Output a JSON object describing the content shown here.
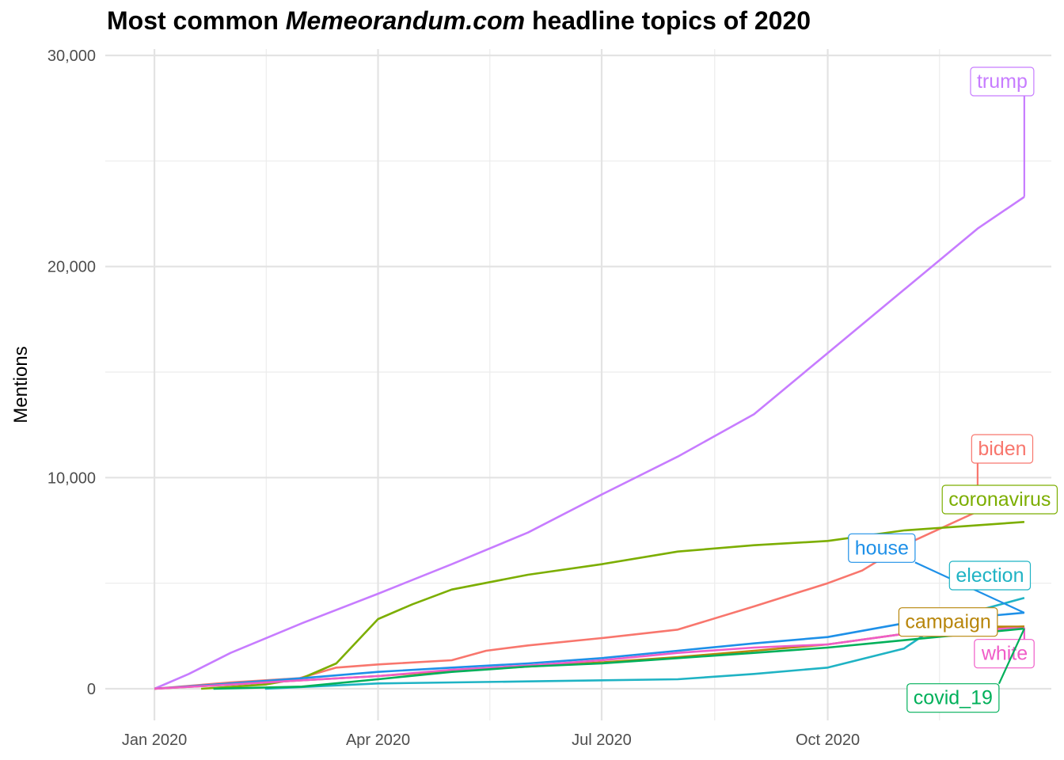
{
  "chart_data": {
    "type": "line",
    "title_parts": {
      "before": "Most common ",
      "italic": "Memeorandum.com",
      "after": " headline topics of 2020"
    },
    "xlabel": "",
    "ylabel": "Mentions",
    "x_ticks": [
      "Jan 2020",
      "Apr 2020",
      "Jul 2020",
      "Oct 2020"
    ],
    "x_tick_dates": [
      "2020-01-01",
      "2020-04-01",
      "2020-07-01",
      "2020-10-01"
    ],
    "y_ticks": [
      "0",
      "10,000",
      "20,000",
      "30,000"
    ],
    "y_tick_values": [
      0,
      10000,
      20000,
      30000
    ],
    "xlim": [
      "2019-12-12",
      "2020-12-31"
    ],
    "ylim": [
      -1500,
      30300
    ],
    "grid": true,
    "series": [
      {
        "name": "trump",
        "color": "#C77CFF",
        "label_date": "2020-12-11",
        "label_y": 28800,
        "points": [
          [
            "2020-01-01",
            0
          ],
          [
            "2020-01-15",
            700
          ],
          [
            "2020-02-01",
            1700
          ],
          [
            "2020-03-01",
            3100
          ],
          [
            "2020-04-01",
            4500
          ],
          [
            "2020-05-01",
            5900
          ],
          [
            "2020-06-01",
            7400
          ],
          [
            "2020-07-01",
            9200
          ],
          [
            "2020-08-01",
            11000
          ],
          [
            "2020-09-01",
            13000
          ],
          [
            "2020-10-01",
            15900
          ],
          [
            "2020-11-01",
            18900
          ],
          [
            "2020-12-01",
            21800
          ],
          [
            "2020-12-20",
            23300
          ]
        ]
      },
      {
        "name": "biden",
        "color": "#F8766D",
        "label_date": "2020-12-11",
        "label_y": 11400,
        "points": [
          [
            "2020-01-01",
            0
          ],
          [
            "2020-02-01",
            300
          ],
          [
            "2020-02-29",
            500
          ],
          [
            "2020-03-15",
            1000
          ],
          [
            "2020-04-01",
            1150
          ],
          [
            "2020-05-01",
            1350
          ],
          [
            "2020-05-15",
            1800
          ],
          [
            "2020-06-01",
            2050
          ],
          [
            "2020-07-01",
            2400
          ],
          [
            "2020-08-01",
            2800
          ],
          [
            "2020-09-01",
            3900
          ],
          [
            "2020-10-01",
            5000
          ],
          [
            "2020-10-15",
            5600
          ],
          [
            "2020-11-01",
            6800
          ],
          [
            "2020-12-01",
            8400
          ]
        ]
      },
      {
        "name": "coronavirus",
        "color": "#7CAE00",
        "label_date": "2020-12-10",
        "label_y": 9000,
        "points": [
          [
            "2020-01-20",
            0
          ],
          [
            "2020-02-15",
            200
          ],
          [
            "2020-03-01",
            500
          ],
          [
            "2020-03-15",
            1200
          ],
          [
            "2020-04-01",
            3300
          ],
          [
            "2020-04-15",
            4000
          ],
          [
            "2020-05-01",
            4700
          ],
          [
            "2020-06-01",
            5400
          ],
          [
            "2020-07-01",
            5900
          ],
          [
            "2020-08-01",
            6500
          ],
          [
            "2020-09-01",
            6800
          ],
          [
            "2020-10-01",
            7000
          ],
          [
            "2020-11-01",
            7500
          ],
          [
            "2020-12-20",
            7900
          ]
        ]
      },
      {
        "name": "house",
        "color": "#1E90E8",
        "label_date": "2020-10-23",
        "label_y": 6700,
        "points": [
          [
            "2020-01-01",
            0
          ],
          [
            "2020-02-01",
            250
          ],
          [
            "2020-03-01",
            500
          ],
          [
            "2020-04-01",
            800
          ],
          [
            "2020-05-01",
            1000
          ],
          [
            "2020-06-01",
            1200
          ],
          [
            "2020-07-01",
            1450
          ],
          [
            "2020-08-01",
            1800
          ],
          [
            "2020-09-01",
            2150
          ],
          [
            "2020-10-01",
            2450
          ],
          [
            "2020-11-01",
            3100
          ],
          [
            "2020-12-20",
            3600
          ]
        ]
      },
      {
        "name": "election",
        "color": "#1FB3C4",
        "label_date": "2020-12-06",
        "label_y": 5400,
        "points": [
          [
            "2020-02-15",
            0
          ],
          [
            "2020-04-01",
            250
          ],
          [
            "2020-06-01",
            350
          ],
          [
            "2020-08-01",
            450
          ],
          [
            "2020-09-01",
            700
          ],
          [
            "2020-10-01",
            1000
          ],
          [
            "2020-11-01",
            1900
          ],
          [
            "2020-11-15",
            3000
          ],
          [
            "2020-12-01",
            3700
          ],
          [
            "2020-12-20",
            4300
          ]
        ]
      },
      {
        "name": "campaign",
        "color": "#B8860B",
        "label_date": "2020-11-19",
        "label_y": 3200,
        "points": [
          [
            "2020-01-01",
            0
          ],
          [
            "2020-02-01",
            200
          ],
          [
            "2020-03-01",
            400
          ],
          [
            "2020-04-01",
            600
          ],
          [
            "2020-05-01",
            850
          ],
          [
            "2020-06-01",
            1050
          ],
          [
            "2020-07-01",
            1250
          ],
          [
            "2020-08-01",
            1500
          ],
          [
            "2020-09-01",
            1800
          ],
          [
            "2020-10-01",
            2100
          ],
          [
            "2020-11-01",
            2600
          ],
          [
            "2020-12-20",
            2950
          ]
        ]
      },
      {
        "name": "white",
        "color": "#F05CC8",
        "label_date": "2020-12-12",
        "label_y": 1700,
        "points": [
          [
            "2020-01-01",
            0
          ],
          [
            "2020-02-01",
            200
          ],
          [
            "2020-03-01",
            400
          ],
          [
            "2020-04-01",
            600
          ],
          [
            "2020-05-01",
            900
          ],
          [
            "2020-06-01",
            1100
          ],
          [
            "2020-07-01",
            1350
          ],
          [
            "2020-08-01",
            1700
          ],
          [
            "2020-09-01",
            1950
          ],
          [
            "2020-10-01",
            2100
          ],
          [
            "2020-11-01",
            2600
          ],
          [
            "2020-12-20",
            2900
          ]
        ]
      },
      {
        "name": "covid_19",
        "color": "#00B05A",
        "label_date": "2020-11-21",
        "label_y": -400,
        "points": [
          [
            "2020-01-25",
            0
          ],
          [
            "2020-03-01",
            100
          ],
          [
            "2020-04-01",
            450
          ],
          [
            "2020-05-01",
            800
          ],
          [
            "2020-06-01",
            1050
          ],
          [
            "2020-07-01",
            1200
          ],
          [
            "2020-08-01",
            1450
          ],
          [
            "2020-09-01",
            1700
          ],
          [
            "2020-10-01",
            1950
          ],
          [
            "2020-11-01",
            2300
          ],
          [
            "2020-12-20",
            2850
          ]
        ]
      }
    ]
  }
}
